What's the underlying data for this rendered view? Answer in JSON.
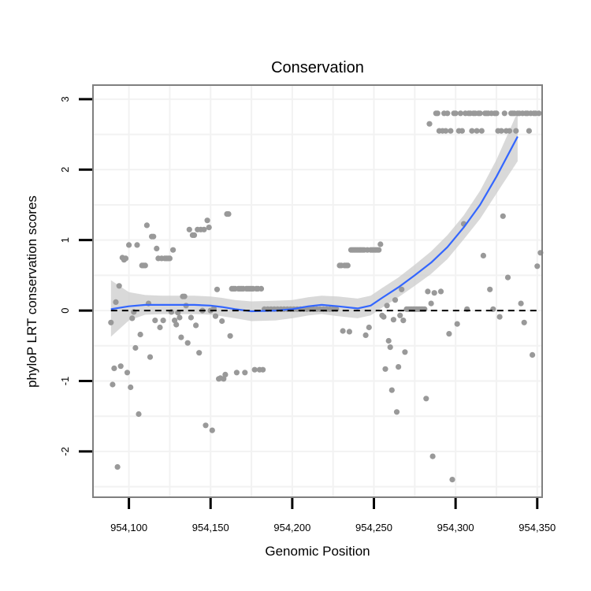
{
  "chart_data": {
    "type": "scatter",
    "title": "Conservation",
    "xlabel": "Genomic Position",
    "ylabel": "phyloP LRT conservation scores",
    "xlim": [
      954078,
      954353
    ],
    "ylim": [
      -2.65,
      3.2
    ],
    "x_ticks": [
      954100,
      954150,
      954200,
      954250,
      954300,
      954350
    ],
    "x_tick_labels": [
      "954,100",
      "954,150",
      "954,200",
      "954,250",
      "954,300",
      "954,350"
    ],
    "y_ticks": [
      -2,
      -1,
      0,
      1,
      2,
      3
    ],
    "y_tick_labels": [
      "-2",
      "-1",
      "0",
      "1",
      "2",
      "3"
    ],
    "grid": true,
    "colors": {
      "points": "#999999",
      "smooth_line": "#3366FF",
      "ribbon": "#cccccc",
      "panel_border": "#7f7f7f",
      "grid": "#f2f2f2",
      "reference_line": "#000000"
    },
    "reference_line": {
      "y": 0,
      "style": "dashed"
    },
    "points": [
      [
        954089,
        -0.17
      ],
      [
        954090,
        -1.05
      ],
      [
        954091,
        -0.82
      ],
      [
        954092,
        0.12
      ],
      [
        954093,
        -2.22
      ],
      [
        954094,
        0.35
      ],
      [
        954095,
        -0.79
      ],
      [
        954096,
        0.75
      ],
      [
        954097,
        0.72
      ],
      [
        954098,
        0.74
      ],
      [
        954099,
        -0.88
      ],
      [
        954100,
        0.93
      ],
      [
        954101,
        -1.09
      ],
      [
        954102,
        -0.11
      ],
      [
        954103,
        -0.02
      ],
      [
        954104,
        -0.53
      ],
      [
        954105,
        0.93
      ],
      [
        954106,
        -1.47
      ],
      [
        954107,
        -0.34
      ],
      [
        954108,
        0.64
      ],
      [
        954109,
        0.64
      ],
      [
        954110,
        0.64
      ],
      [
        954111,
        1.21
      ],
      [
        954112,
        0.1
      ],
      [
        954113,
        -0.66
      ],
      [
        954114,
        1.05
      ],
      [
        954115,
        1.05
      ],
      [
        954116,
        -0.14
      ],
      [
        954117,
        0.88
      ],
      [
        954118,
        0.74
      ],
      [
        954119,
        -0.24
      ],
      [
        954120,
        0.74
      ],
      [
        954121,
        -0.14
      ],
      [
        954122,
        0.74
      ],
      [
        954123,
        0.74
      ],
      [
        954124,
        0.74
      ],
      [
        954125,
        0.74
      ],
      [
        954126,
        -0.02
      ],
      [
        954127,
        0.86
      ],
      [
        954128,
        -0.14
      ],
      [
        954129,
        -0.2
      ],
      [
        954130,
        -0.03
      ],
      [
        954131,
        -0.1
      ],
      [
        954132,
        -0.38
      ],
      [
        954133,
        0.2
      ],
      [
        954134,
        0.2
      ],
      [
        954135,
        0.07
      ],
      [
        954136,
        -0.46
      ],
      [
        954137,
        1.15
      ],
      [
        954138,
        -0.1
      ],
      [
        954139,
        1.07
      ],
      [
        954140,
        1.07
      ],
      [
        954141,
        -0.21
      ],
      [
        954142,
        1.15
      ],
      [
        954143,
        -0.6
      ],
      [
        954144,
        1.15
      ],
      [
        954145,
        0.0
      ],
      [
        954146,
        1.15
      ],
      [
        954147,
        -1.63
      ],
      [
        954148,
        1.28
      ],
      [
        954149,
        1.18
      ],
      [
        954150,
        -0.0
      ],
      [
        954151,
        -1.7
      ],
      [
        954152,
        0.03
      ],
      [
        954153,
        -0.08
      ],
      [
        954154,
        0.3
      ],
      [
        954155,
        -0.97
      ],
      [
        954156,
        -0.96
      ],
      [
        954157,
        -0.15
      ],
      [
        954158,
        -0.97
      ],
      [
        954159,
        -0.91
      ],
      [
        954160,
        1.37
      ],
      [
        954161,
        1.37
      ],
      [
        954162,
        -0.36
      ],
      [
        954163,
        0.31
      ],
      [
        954164,
        0.31
      ],
      [
        954165,
        0.31
      ],
      [
        954166,
        -0.88
      ],
      [
        954167,
        0.31
      ],
      [
        954168,
        0.31
      ],
      [
        954169,
        0.31
      ],
      [
        954170,
        0.31
      ],
      [
        954171,
        -0.88
      ],
      [
        954172,
        0.31
      ],
      [
        954173,
        0.31
      ],
      [
        954174,
        0.31
      ],
      [
        954175,
        0.31
      ],
      [
        954176,
        0.31
      ],
      [
        954177,
        -0.84
      ],
      [
        954178,
        0.31
      ],
      [
        954179,
        0.31
      ],
      [
        954180,
        -0.84
      ],
      [
        954181,
        0.31
      ],
      [
        954182,
        -0.84
      ],
      [
        954183,
        0.02
      ],
      [
        954185,
        0.02
      ],
      [
        954187,
        0.02
      ],
      [
        954189,
        0.02
      ],
      [
        954191,
        0.02
      ],
      [
        954193,
        0.02
      ],
      [
        954195,
        0.02
      ],
      [
        954197,
        0.02
      ],
      [
        954199,
        0.02
      ],
      [
        954201,
        0.02
      ],
      [
        954203,
        0.02
      ],
      [
        954205,
        0.02
      ],
      [
        954207,
        0.02
      ],
      [
        954209,
        0.02
      ],
      [
        954211,
        0.02
      ],
      [
        954213,
        0.02
      ],
      [
        954215,
        0.02
      ],
      [
        954217,
        0.02
      ],
      [
        954219,
        0.02
      ],
      [
        954221,
        0.02
      ],
      [
        954223,
        0.02
      ],
      [
        954225,
        0.02
      ],
      [
        954227,
        0.02
      ],
      [
        954229,
        0.64
      ],
      [
        954230,
        0.64
      ],
      [
        954231,
        -0.29
      ],
      [
        954232,
        0.64
      ],
      [
        954233,
        0.64
      ],
      [
        954234,
        0.64
      ],
      [
        954235,
        -0.3
      ],
      [
        954236,
        0.86
      ],
      [
        954237,
        0.86
      ],
      [
        954238,
        0.86
      ],
      [
        954239,
        0.86
      ],
      [
        954240,
        0.86
      ],
      [
        954241,
        0.86
      ],
      [
        954242,
        0.86
      ],
      [
        954243,
        0.86
      ],
      [
        954244,
        0.86
      ],
      [
        954245,
        -0.35
      ],
      [
        954246,
        0.86
      ],
      [
        954247,
        -0.24
      ],
      [
        954248,
        0.86
      ],
      [
        954249,
        0.86
      ],
      [
        954250,
        0.86
      ],
      [
        954251,
        0.86
      ],
      [
        954252,
        0.86
      ],
      [
        954253,
        0.86
      ],
      [
        954254,
        0.94
      ],
      [
        954255,
        -0.07
      ],
      [
        954256,
        -0.09
      ],
      [
        954257,
        -0.83
      ],
      [
        954258,
        0.07
      ],
      [
        954259,
        -0.43
      ],
      [
        954260,
        -0.52
      ],
      [
        954261,
        -1.13
      ],
      [
        954262,
        -0.13
      ],
      [
        954263,
        0.15
      ],
      [
        954264,
        -1.44
      ],
      [
        954265,
        -0.8
      ],
      [
        954266,
        -0.07
      ],
      [
        954267,
        0.3
      ],
      [
        954268,
        -0.14
      ],
      [
        954269,
        -0.59
      ],
      [
        954270,
        0.02
      ],
      [
        954271,
        0.02
      ],
      [
        954272,
        0.02
      ],
      [
        954273,
        0.02
      ],
      [
        954274,
        0.02
      ],
      [
        954275,
        0.02
      ],
      [
        954276,
        0.02
      ],
      [
        954277,
        0.02
      ],
      [
        954278,
        0.02
      ],
      [
        954279,
        0.02
      ],
      [
        954280,
        0.02
      ],
      [
        954281,
        0.02
      ],
      [
        954282,
        -1.25
      ],
      [
        954283,
        0.27
      ],
      [
        954284,
        2.65
      ],
      [
        954285,
        0.1
      ],
      [
        954286,
        -2.07
      ],
      [
        954287,
        0.25
      ],
      [
        954288,
        2.8
      ],
      [
        954289,
        2.8
      ],
      [
        954290,
        2.55
      ],
      [
        954291,
        0.27
      ],
      [
        954292,
        2.55
      ],
      [
        954293,
        2.8
      ],
      [
        954294,
        2.55
      ],
      [
        954295,
        2.8
      ],
      [
        954296,
        -0.33
      ],
      [
        954297,
        2.55
      ],
      [
        954298,
        -2.4
      ],
      [
        954299,
        2.8
      ],
      [
        954300,
        2.8
      ],
      [
        954301,
        -0.19
      ],
      [
        954302,
        2.55
      ],
      [
        954303,
        2.8
      ],
      [
        954304,
        2.55
      ],
      [
        954305,
        1.23
      ],
      [
        954306,
        2.8
      ],
      [
        954307,
        0.02
      ],
      [
        954308,
        2.8
      ],
      [
        954309,
        2.8
      ],
      [
        954310,
        2.55
      ],
      [
        954311,
        2.8
      ],
      [
        954312,
        2.8
      ],
      [
        954313,
        2.55
      ],
      [
        954314,
        2.8
      ],
      [
        954315,
        2.8
      ],
      [
        954316,
        2.55
      ],
      [
        954317,
        0.78
      ],
      [
        954318,
        2.8
      ],
      [
        954319,
        2.8
      ],
      [
        954320,
        2.8
      ],
      [
        954321,
        0.3
      ],
      [
        954322,
        2.8
      ],
      [
        954323,
        0.02
      ],
      [
        954324,
        2.8
      ],
      [
        954325,
        2.8
      ],
      [
        954326,
        2.55
      ],
      [
        954327,
        -0.09
      ],
      [
        954328,
        2.55
      ],
      [
        954329,
        1.34
      ],
      [
        954330,
        2.8
      ],
      [
        954331,
        2.55
      ],
      [
        954332,
        0.47
      ],
      [
        954333,
        2.55
      ],
      [
        954334,
        2.8
      ],
      [
        954335,
        2.8
      ],
      [
        954336,
        2.8
      ],
      [
        954337,
        2.55
      ],
      [
        954338,
        2.8
      ],
      [
        954339,
        2.8
      ],
      [
        954340,
        0.1
      ],
      [
        954341,
        2.8
      ],
      [
        954342,
        -0.17
      ],
      [
        954343,
        2.8
      ],
      [
        954344,
        2.8
      ],
      [
        954345,
        2.55
      ],
      [
        954346,
        2.8
      ],
      [
        954347,
        -0.63
      ],
      [
        954348,
        2.8
      ],
      [
        954349,
        2.8
      ],
      [
        954350,
        0.63
      ],
      [
        954351,
        2.8
      ],
      [
        954352,
        0.82
      ]
    ],
    "smooth": {
      "x": [
        954089,
        954100,
        954110,
        954120,
        954130,
        954140,
        954150,
        954157,
        954165,
        954175,
        954190,
        954200,
        954210,
        954218,
        954228,
        954240,
        954248,
        954255,
        954265,
        954275,
        954285,
        954295,
        954305,
        954315,
        954325,
        954338
      ],
      "y": [
        0.02,
        0.06,
        0.08,
        0.08,
        0.08,
        0.08,
        0.07,
        0.05,
        0.02,
        -0.01,
        0.0,
        0.02,
        0.06,
        0.08,
        0.06,
        0.03,
        0.07,
        0.18,
        0.33,
        0.5,
        0.68,
        0.9,
        1.18,
        1.5,
        1.9,
        2.47
      ],
      "lower": [
        -0.37,
        -0.14,
        -0.06,
        -0.05,
        -0.05,
        -0.05,
        -0.06,
        -0.08,
        -0.11,
        -0.15,
        -0.14,
        -0.11,
        -0.07,
        -0.05,
        -0.08,
        -0.11,
        -0.07,
        0.04,
        0.19,
        0.35,
        0.52,
        0.73,
        1.01,
        1.3,
        1.66,
        2.12
      ],
      "upper": [
        0.43,
        0.26,
        0.22,
        0.21,
        0.21,
        0.21,
        0.2,
        0.18,
        0.15,
        0.13,
        0.14,
        0.15,
        0.19,
        0.21,
        0.2,
        0.17,
        0.21,
        0.32,
        0.47,
        0.65,
        0.84,
        1.07,
        1.35,
        1.7,
        2.14,
        2.82
      ]
    }
  }
}
